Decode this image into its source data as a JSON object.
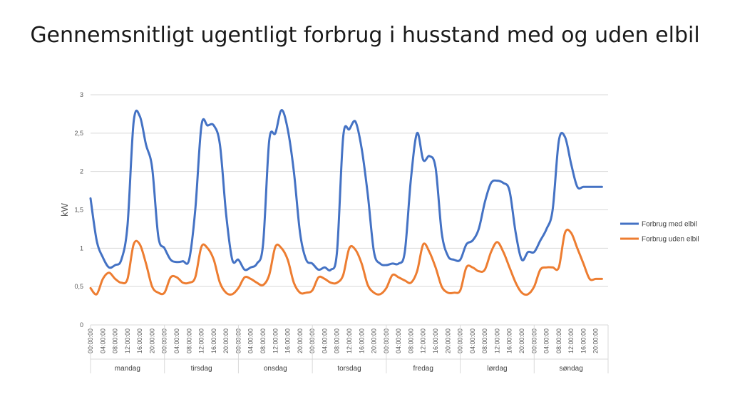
{
  "slide": {
    "title": "Gennemsnitligt ugentligt forbrug i husstand med og uden elbil"
  },
  "chart_data": {
    "type": "line",
    "title": "Gennemsnitligt ugentligt forbrug i husstand med og uden elbil",
    "ylabel": "kW",
    "xlabel": "",
    "ylim": [
      0,
      3
    ],
    "y_ticks": [
      "0",
      "0,5",
      "1",
      "1,5",
      "2",
      "2,5",
      "3"
    ],
    "y_tick_values": [
      0,
      0.5,
      1,
      1.5,
      2,
      2.5,
      3
    ],
    "grid": "horizontal",
    "legend_position": "right",
    "days": [
      "mandag",
      "tirsdag",
      "onsdag",
      "torsdag",
      "fredag",
      "lørdag",
      "søndag"
    ],
    "time_ticks": [
      "00:00:00",
      "04:00:00",
      "08:00:00",
      "12:00:00",
      "16:00:00",
      "20:00:00"
    ],
    "x_hours": [
      0,
      2,
      4,
      6,
      8,
      10,
      12,
      14,
      16,
      18,
      20,
      22,
      24,
      26,
      28,
      30,
      32,
      34,
      36,
      38,
      40,
      42,
      44,
      46,
      48,
      50,
      52,
      54,
      56,
      58,
      60,
      62,
      64,
      66,
      68,
      70,
      72,
      74,
      76,
      78,
      80,
      82,
      84,
      86,
      88,
      90,
      92,
      94,
      96,
      98,
      100,
      102,
      104,
      106,
      108,
      110,
      112,
      114,
      116,
      118,
      120,
      122,
      124,
      126,
      128,
      130,
      132,
      134,
      136,
      138,
      140,
      142,
      144,
      146,
      148,
      150,
      152,
      154,
      156,
      158,
      160,
      162,
      164,
      166
    ],
    "series": [
      {
        "name": "Forbrug med elbil",
        "color": "#4472C4",
        "values": [
          1.65,
          1.1,
          0.88,
          0.75,
          0.78,
          0.85,
          1.3,
          2.65,
          2.72,
          2.35,
          2.05,
          1.15,
          1.0,
          0.85,
          0.82,
          0.83,
          0.85,
          1.5,
          2.6,
          2.6,
          2.6,
          2.35,
          1.45,
          0.85,
          0.85,
          0.72,
          0.75,
          0.8,
          1.05,
          2.4,
          2.5,
          2.8,
          2.55,
          2.0,
          1.2,
          0.85,
          0.8,
          0.72,
          0.75,
          0.72,
          0.95,
          2.45,
          2.55,
          2.65,
          2.3,
          1.7,
          0.95,
          0.8,
          0.78,
          0.8,
          0.8,
          0.95,
          1.9,
          2.5,
          2.15,
          2.2,
          2.05,
          1.2,
          0.9,
          0.85,
          0.85,
          1.05,
          1.1,
          1.25,
          1.6,
          1.85,
          1.88,
          1.85,
          1.75,
          1.2,
          0.85,
          0.95,
          0.95,
          1.1,
          1.25,
          1.5,
          2.4,
          2.45,
          2.1,
          1.8,
          1.8,
          1.8,
          1.8,
          1.8
        ]
      },
      {
        "name": "Forbrug uden elbil",
        "color": "#ED7D31",
        "values": [
          0.48,
          0.4,
          0.6,
          0.68,
          0.6,
          0.55,
          0.6,
          1.05,
          1.05,
          0.8,
          0.5,
          0.42,
          0.42,
          0.62,
          0.62,
          0.55,
          0.55,
          0.62,
          1.02,
          1.0,
          0.85,
          0.55,
          0.42,
          0.4,
          0.48,
          0.62,
          0.6,
          0.55,
          0.52,
          0.65,
          1.02,
          1.0,
          0.85,
          0.55,
          0.42,
          0.42,
          0.45,
          0.62,
          0.6,
          0.55,
          0.55,
          0.65,
          1.0,
          0.98,
          0.8,
          0.52,
          0.42,
          0.4,
          0.48,
          0.65,
          0.62,
          0.58,
          0.55,
          0.7,
          1.05,
          0.95,
          0.75,
          0.5,
          0.42,
          0.42,
          0.45,
          0.75,
          0.75,
          0.7,
          0.72,
          0.95,
          1.08,
          0.95,
          0.75,
          0.55,
          0.42,
          0.4,
          0.5,
          0.72,
          0.75,
          0.75,
          0.75,
          1.2,
          1.2,
          1.0,
          0.8,
          0.6,
          0.6,
          0.6
        ]
      }
    ]
  }
}
